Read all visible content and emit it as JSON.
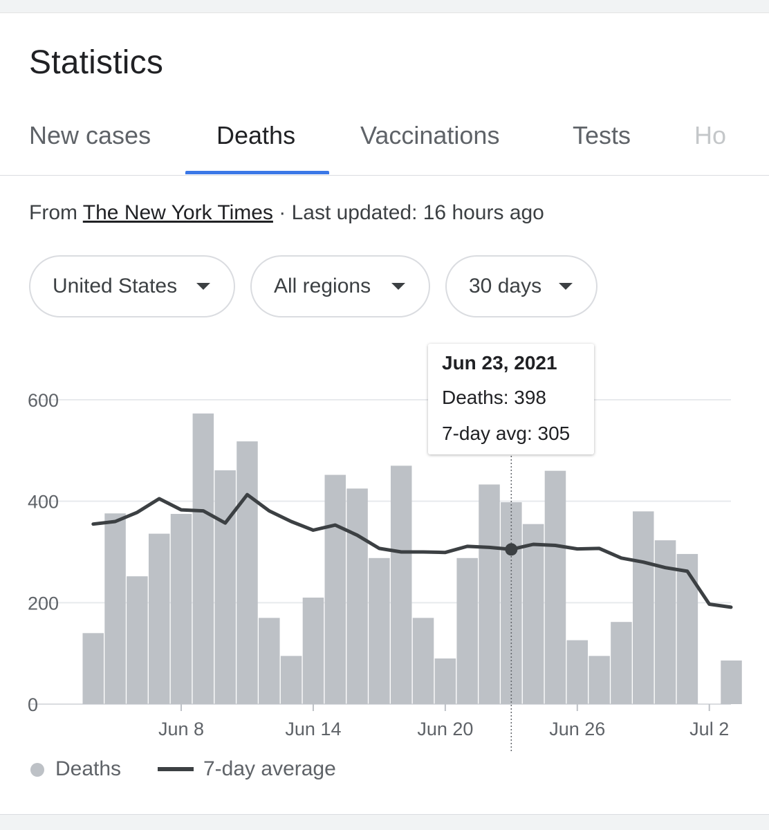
{
  "page": {
    "title": "Statistics"
  },
  "tabs": [
    {
      "label": "New cases",
      "active": false
    },
    {
      "label": "Deaths",
      "active": true
    },
    {
      "label": "Vaccinations",
      "active": false
    },
    {
      "label": "Tests",
      "active": false
    },
    {
      "label": "Ho",
      "active": false
    }
  ],
  "source": {
    "prefix": "From ",
    "link": "The New York Times",
    "suffix": " · Last updated: 16 hours ago"
  },
  "filters": {
    "location": "United States",
    "region": "All regions",
    "range": "30 days"
  },
  "tooltip": {
    "date": "Jun 23, 2021",
    "deaths": "Deaths: 398",
    "avg": "7-day avg: 305"
  },
  "legend": {
    "bars": "Deaths",
    "line": "7-day average"
  },
  "colors": {
    "bar": "#bdc1c6",
    "line": "#3c4043",
    "accent": "#3b78e7"
  },
  "chart_data": {
    "type": "bar",
    "categories": [
      "Jun 4",
      "Jun 5",
      "Jun 6",
      "Jun 7",
      "Jun 8",
      "Jun 9",
      "Jun 10",
      "Jun 11",
      "Jun 12",
      "Jun 13",
      "Jun 14",
      "Jun 15",
      "Jun 16",
      "Jun 17",
      "Jun 18",
      "Jun 19",
      "Jun 20",
      "Jun 21",
      "Jun 22",
      "Jun 23",
      "Jun 24",
      "Jun 25",
      "Jun 26",
      "Jun 27",
      "Jun 28",
      "Jun 29",
      "Jun 30",
      "Jul 1",
      "Jul 2",
      "Jul 3"
    ],
    "series": [
      {
        "name": "Deaths",
        "values": [
          140,
          376,
          252,
          336,
          375,
          573,
          461,
          518,
          170,
          95,
          210,
          452,
          425,
          288,
          470,
          170,
          90,
          288,
          433,
          398,
          355,
          460,
          126,
          95,
          162,
          380,
          323,
          296,
          0,
          86
        ]
      },
      {
        "name": "7-day average",
        "values": [
          355,
          360,
          378,
          405,
          383,
          381,
          357,
          413,
          381,
          360,
          343,
          353,
          333,
          307,
          300,
          300,
          299,
          311,
          309,
          305,
          315,
          313,
          306,
          307,
          288,
          280,
          269,
          262,
          197,
          191
        ]
      }
    ],
    "xticks": [
      "Jun 8",
      "Jun 14",
      "Jun 20",
      "Jun 26",
      "Jul 2"
    ],
    "yticks": [
      0,
      200,
      400,
      600
    ],
    "ylim": [
      0,
      600
    ],
    "grid": true,
    "legend_position": "bottom-left",
    "highlight": "Jun 23"
  }
}
